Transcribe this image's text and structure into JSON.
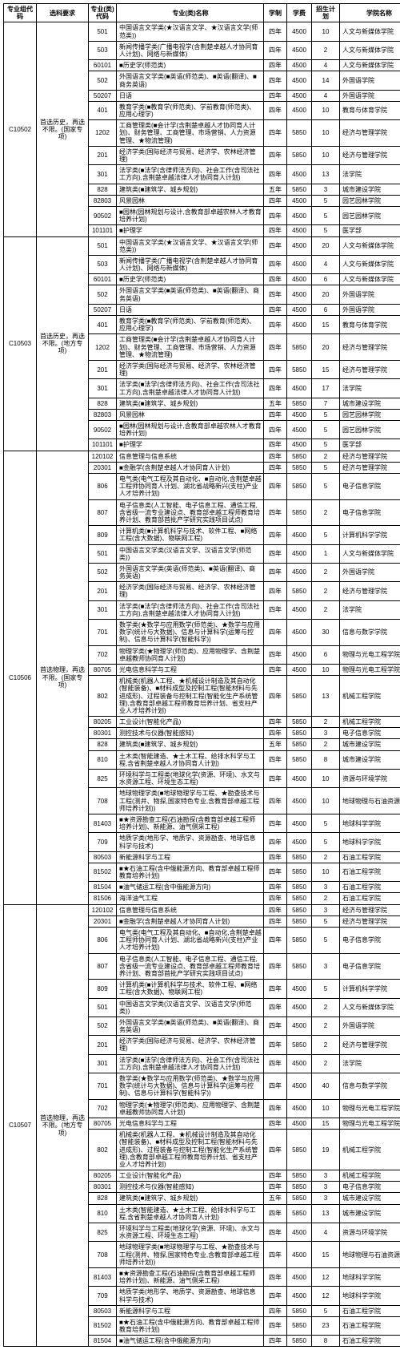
{
  "headers": [
    "专业组代码",
    "选科要求",
    "专业(类)代码",
    "专业(类)名称",
    "学制",
    "学费",
    "招生计划",
    "学院名称"
  ],
  "groups": [
    {
      "code": "C10502",
      "req": "首选历史，再选不限。(国家专项)",
      "rows": [
        {
          "mc": "501",
          "mn": "中国语言文学类(★汉语言文学、★汉语言文学(师范类))",
          "d": "四年",
          "f": "4500",
          "p": "10",
          "s": "人文与新媒体学院"
        },
        {
          "mc": "503",
          "mn": "新闻传播学类(广播电视学(含荆楚卓越人才协同育人计划)、网络与新媒体)",
          "d": "四年",
          "f": "4500",
          "p": "2",
          "s": "人文与新媒体学院"
        },
        {
          "mc": "60101",
          "mn": "■历史学(师范类)",
          "d": "四年",
          "f": "4500",
          "p": "4",
          "s": "人文与新媒体学院"
        },
        {
          "mc": "502",
          "mn": "外国语言文学类(■英语(师范类)、■英语(翻译)、■商务英语)",
          "d": "四年",
          "f": "4500",
          "p": "14",
          "s": "外国语学院"
        },
        {
          "mc": "50207",
          "mn": "日语",
          "d": "四年",
          "f": "4500",
          "p": "4",
          "s": "外国语学院"
        },
        {
          "mc": "401",
          "mn": "教育学类(■教育学(师范类)、学前教育(师范类)、应用心理学)",
          "d": "四年",
          "f": "4500",
          "p": "10",
          "s": "教育与体育学院"
        },
        {
          "mc": "1202",
          "mn": "工商管理类(■会计学(含荆楚卓越人才协同育人计划)、财务管理、工商管理、市场营销、人力资源管理、★物流管理)",
          "d": "四年",
          "f": "5850",
          "p": "10",
          "s": "经济与管理学院"
        },
        {
          "mc": "201",
          "mn": "经济学类(国际经济与贸易、经济学、农林经济管理)",
          "d": "四年",
          "f": "5850",
          "p": "10",
          "s": "经济与管理学院"
        },
        {
          "mc": "301",
          "mn": "法学类(■法学(含律师法方向)、社会工作(含司法社工方向),含荆楚卓越法律人才协同育人计划)",
          "d": "四年",
          "f": "4500",
          "p": "13",
          "s": "法学院"
        },
        {
          "mc": "828",
          "mn": "建筑类(■建筑学、城乡规划)",
          "d": "五年",
          "f": "5850",
          "p": "3",
          "s": "城市建设学院"
        },
        {
          "mc": "82803",
          "mn": "风景园林",
          "d": "四年",
          "f": "4500",
          "p": "5",
          "s": "园艺园林学院"
        },
        {
          "mc": "90502",
          "mn": "■园林(园林规划与设计,含教育部卓越农林人才教育培养计划)",
          "d": "四年",
          "f": "4500",
          "p": "5",
          "s": "园艺园林学院"
        },
        {
          "mc": "101101",
          "mn": "■护理学",
          "d": "四年",
          "f": "4500",
          "p": "5",
          "s": "医学部"
        }
      ]
    },
    {
      "code": "C10503",
      "req": "首选历史，再选不限。(地方专项)",
      "rows": [
        {
          "mc": "501",
          "mn": "中国语言文学类(★汉语言文学、★汉语言文学(师范类))",
          "d": "四年",
          "f": "4500",
          "p": "20",
          "s": "人文与新媒体学院"
        },
        {
          "mc": "503",
          "mn": "新闻传播学类(广播电视学(含荆楚卓越人才协同育人计划)、网络与新媒体)",
          "d": "四年",
          "f": "4500",
          "p": "4",
          "s": "人文与新媒体学院"
        },
        {
          "mc": "60101",
          "mn": "■历史学(师范类)",
          "d": "四年",
          "f": "4500",
          "p": "6",
          "s": "人文与新媒体学院"
        },
        {
          "mc": "502",
          "mn": "外国语言文学类(■英语(师范类)、■英语(翻译)、商务英语)",
          "d": "四年",
          "f": "4500",
          "p": "20",
          "s": "外国语学院"
        },
        {
          "mc": "50207",
          "mn": "日语",
          "d": "四年",
          "f": "4500",
          "p": "6",
          "s": "外国语学院"
        },
        {
          "mc": "401",
          "mn": "教育学类(■教育学(师范类)、学前教育(师范类)、应用心理学)",
          "d": "四年",
          "f": "4500",
          "p": "15",
          "s": "教育与体育学院"
        },
        {
          "mc": "1202",
          "mn": "工商管理类(■会计学(含荆楚卓越人才协同育人计划)、财务管理、工商管理、市场营销、人力资源管理、★物流管理)",
          "d": "四年",
          "f": "5850",
          "p": "20",
          "s": "经济与管理学院"
        },
        {
          "mc": "201",
          "mn": "经济学类(国际经济与贸易、经济学、农林经济管理)",
          "d": "四年",
          "f": "5850",
          "p": "15",
          "s": "经济与管理学院"
        },
        {
          "mc": "301",
          "mn": "法学类(■法学(含律师法方向)、社会工作(含司法社工方向),含荆楚卓越法律人才协同育人计划)",
          "d": "四年",
          "f": "4500",
          "p": "17",
          "s": "法学院"
        },
        {
          "mc": "828",
          "mn": "建筑类(■建筑学、城乡规划)",
          "d": "五年",
          "f": "5850",
          "p": "7",
          "s": "城市建设学院"
        },
        {
          "mc": "82803",
          "mn": "风景园林",
          "d": "四年",
          "f": "4500",
          "p": "5",
          "s": "园艺园林学院"
        },
        {
          "mc": "90502",
          "mn": "■园林(园林规划与设计,含教育部卓越农林人才教育培养计划)",
          "d": "四年",
          "f": "4500",
          "p": "5",
          "s": "园艺园林学院"
        },
        {
          "mc": "101101",
          "mn": "■护理学",
          "d": "四年",
          "f": "4500",
          "p": "5",
          "s": "医学部"
        }
      ]
    },
    {
      "code": "C10506",
      "req": "首选物理，再选不限。(国家专项)",
      "rows": [
        {
          "mc": "120102",
          "mn": "信息管理与信息系统",
          "d": "四年",
          "f": "5850",
          "p": "2",
          "s": "经济与管理学院"
        },
        {
          "mc": "20301",
          "mn": "■金融学(含荆楚卓越人才协同育人计划)",
          "d": "四年",
          "f": "5850",
          "p": "5",
          "s": "经济与管理学院"
        },
        {
          "mc": "806",
          "mn": "电气类(电气工程及其自动化、■自动化,含荆楚卓越工程师协同育人计划、湖北省战略新兴(支柱)产业人才培养计划)",
          "d": "四年",
          "f": "5850",
          "p": "5",
          "s": "电子信息学院"
        },
        {
          "mc": "807",
          "mn": "电子信息类(人工智能、电子信息工程、通信工程,含省级一流专业建设点、教育部卓越工程师教育培养计划、教育部首批产学研究实践项目试点)",
          "d": "四年",
          "f": "5850",
          "p": "2",
          "s": "电子信息学院"
        },
        {
          "mc": "809",
          "mn": "计算机类(■计算机科学与技术、软件工程、■网络工程(含大数据)、物联网工程)",
          "d": "四年",
          "f": "4500",
          "p": "5",
          "s": "计算机科学学院"
        },
        {
          "mc": "501",
          "mn": "中国语言文学类(汉语言文学、汉语言文学(师范类))",
          "d": "四年",
          "f": "4500",
          "p": "1",
          "s": "人文与新媒体学院"
        },
        {
          "mc": "502",
          "mn": "外国语言文学类(英语(师范类)、■英语(翻译)、商务英语)",
          "d": "四年",
          "f": "4500",
          "p": "2",
          "s": "外国语学院"
        },
        {
          "mc": "201",
          "mn": "经济学类(国际经济与贸易、经济学、农林经济管理)",
          "d": "四年",
          "f": "5850",
          "p": "2",
          "s": "经济与管理学院"
        },
        {
          "mc": "301",
          "mn": "法学类(■法学(含律师法方向)、社会工作(含司法社工方向),含荆楚卓越法律人才协同育人计划)",
          "d": "四年",
          "f": "4500",
          "p": "2",
          "s": "法学院"
        },
        {
          "mc": "701",
          "mn": "数学类(★数学与应用数学(师范类)、★数学与应用数学(统计与大数据)、信息与计算科学(运筹与控制)、信息与计算科学(智能科学))",
          "d": "四年",
          "f": "4500",
          "p": "30",
          "s": "信息与数学学院"
        },
        {
          "mc": "702",
          "mn": "物理学类(★物理学(师范类)、应用物理学、含荆楚卓越教师协同育人计划)",
          "d": "四年",
          "f": "4500",
          "p": "6",
          "s": "物理与光电工程学院"
        },
        {
          "mc": "80705",
          "mn": "光电信息科学与工程",
          "d": "四年",
          "f": "4500",
          "p": "10",
          "s": "物理与光电工程学院"
        },
        {
          "mc": "802",
          "mn": "机械类(机器人工程、★机械设计制造及其自动化(智能装备)、■材料成型及控制工程(智能材料与先进成形)、过程装备与控制工程(智能化生产系统管理),含教育部卓越工程师教育培养计划、省支柱产业人才培养计划)",
          "d": "四年",
          "f": "5850",
          "p": "13",
          "s": "机械工程学院"
        },
        {
          "mc": "80205",
          "mn": "工业设计(智能化产品)",
          "d": "四年",
          "f": "5850",
          "p": "2",
          "s": "机械工程学院"
        },
        {
          "mc": "80301",
          "mn": "测控技术与仪器(智能感知)",
          "d": "四年",
          "f": "5850",
          "p": "3",
          "s": "电子信息学院"
        },
        {
          "mc": "828",
          "mn": "建筑类(■建筑学、城乡规划)",
          "d": "五年",
          "f": "5850",
          "p": "2",
          "s": "城市建设学院"
        },
        {
          "mc": "810",
          "mn": "土木类(智能建造、★土木工程、给排水科学与工程,含省荆楚卓越人才协同育人计划)",
          "d": "四年",
          "f": "5850",
          "p": "8",
          "s": "城市建设学院"
        },
        {
          "mc": "825",
          "mn": "环境科学与工程类(地球化学(资源、环境)、水文与水资源工程、环境生态工程)",
          "d": "四年",
          "f": "4500",
          "p": "10",
          "s": "资源与环境学院"
        },
        {
          "mc": "708",
          "mn": "地球物理学类(■地球物理学与工程、★勘查技术与工程(测井、物探,国家特色专业,含教育部卓越工程师培养计划))",
          "d": "四年",
          "f": "4500",
          "p": "10",
          "s": "地球物理与石油资源学院"
        },
        {
          "mc": "81403",
          "mn": "■★资源勘查工程(石油勘探(含教育部卓越工程师培养计划)、新能源、油气侧采工程)",
          "d": "四年",
          "f": "4500",
          "p": "5",
          "s": "地球科学学院"
        },
        {
          "mc": "709",
          "mn": "地质学类(地形学、地质学、资源勘查、地球信息科学与技术)",
          "d": "四年",
          "f": "4500",
          "p": "5",
          "s": "地球科学学院"
        },
        {
          "mc": "80503",
          "mn": "新能源科学与工程",
          "d": "四年",
          "f": "5850",
          "p": "2",
          "s": "石油工程学院"
        },
        {
          "mc": "81502",
          "mn": "■★石油工程(含中俄能源方向、教育部卓越工程师教育培养计划)",
          "d": "四年",
          "f": "5850",
          "p": "10",
          "s": "石油工程学院"
        },
        {
          "mc": "81504",
          "mn": "■油气储运工程(含中俄能源方向)",
          "d": "四年",
          "f": "5850",
          "p": "3",
          "s": "石油工程学院"
        },
        {
          "mc": "81506",
          "mn": "海洋油气工程",
          "d": "四年",
          "f": "5850",
          "p": "2",
          "s": "石油工程学院"
        }
      ]
    },
    {
      "code": "C10507",
      "req": "首选物理，再选不限。(地方专项)",
      "rows": [
        {
          "mc": "120102",
          "mn": "信息管理与信息系统",
          "d": "四年",
          "f": "5850",
          "p": "3",
          "s": "经济与管理学院"
        },
        {
          "mc": "20301",
          "mn": "■金融学(含荆楚卓越人才协同育人计划)",
          "d": "四年",
          "f": "5850",
          "p": "5",
          "s": "经济与管理学院"
        },
        {
          "mc": "806",
          "mn": "电气类(电气工程及其自动化、■自动化,含荆楚卓越工程师协同育人计划、湖北省战略新兴(支柱)产业人才培养计划)",
          "d": "四年",
          "f": "5850",
          "p": "5",
          "s": "电子信息学院"
        },
        {
          "mc": "807",
          "mn": "电子信息类(人工智能、电子信息工程、通信工程,含省级一流专业建设点、教育部卓越工程师教育培养计划、教育部首批产学研究实践项目试点)",
          "d": "四年",
          "f": "5850",
          "p": "3",
          "s": "电子信息学院"
        },
        {
          "mc": "809",
          "mn": "计算机类(■计算机科学与技术、软件工程、■网络工程(含大数据)、物联网工程)",
          "d": "四年",
          "f": "4500",
          "p": "5",
          "s": "计算机科学学院"
        },
        {
          "mc": "501",
          "mn": "中国语言文学类(汉语言文学、汉语言文学(师范类))",
          "d": "四年",
          "f": "4500",
          "p": "2",
          "s": "人文与新媒体学院"
        },
        {
          "mc": "502",
          "mn": "外国语言文学类(■英语(师范类)、■英语(翻译)、商务英语)",
          "d": "四年",
          "f": "4500",
          "p": "2",
          "s": "外国语学院"
        },
        {
          "mc": "201",
          "mn": "经济学类(国际经济与贸易、经济学、农林经济管理)",
          "d": "四年",
          "f": "5850",
          "p": "2",
          "s": "经济与管理学院"
        },
        {
          "mc": "301",
          "mn": "法学类(■法学(含律师法方向)、社会工作(含司法社工方向),含荆楚卓越法律人才协同育人计划)",
          "d": "四年",
          "f": "4500",
          "p": "2",
          "s": "法学院"
        },
        {
          "mc": "701",
          "mn": "数学类(★数学与应用数学(师范类)、★数学与应用数学(统计与大数据)、信息与计算科学(运筹与控制)、信息与计算科学(智能科学))",
          "d": "四年",
          "f": "4500",
          "p": "40",
          "s": "信息与数学学院"
        },
        {
          "mc": "702",
          "mn": "物理学类(★物理学(师范类)、应用物理学、含荆楚卓越教师协同育人计划)",
          "d": "四年",
          "f": "4500",
          "p": "10",
          "s": "物理与光电工程学院"
        },
        {
          "mc": "80705",
          "mn": "光电信息科学与工程",
          "d": "四年",
          "f": "4500",
          "p": "15",
          "s": "物理与光电工程学院"
        },
        {
          "mc": "802",
          "mn": "机械类(机器人工程、★机械设计制造及其自动化(智能装备)、■材料成型及控制工程(智能材料与先进成形)、过程装备与控制工程(智能化生产系统管理),含教育部卓越工程师教育培养计划、省支柱产业人才培养计划)",
          "d": "四年",
          "f": "5850",
          "p": "19",
          "s": "机械工程学院"
        },
        {
          "mc": "80205",
          "mn": "工业设计(智能化产品)",
          "d": "四年",
          "f": "5850",
          "p": "3",
          "s": "机械工程学院"
        },
        {
          "mc": "80301",
          "mn": "测控技术与仪器(智能感知)",
          "d": "四年",
          "f": "5850",
          "p": "3",
          "s": "电子信息学院"
        },
        {
          "mc": "828",
          "mn": "建筑类(■建筑学、城乡规划)",
          "d": "五年",
          "f": "5850",
          "p": "3",
          "s": "城市建设学院"
        },
        {
          "mc": "810",
          "mn": "土木类(智能建造、★土木工程、给排水科学与工程,含省荆楚卓越人才协同育人计划)",
          "d": "四年",
          "f": "5850",
          "p": "13",
          "s": "城市建设学院"
        },
        {
          "mc": "825",
          "mn": "环境科学与工程类(地球化学(资源、环境)、水文与水资源工程、环境生态工程)",
          "d": "四年",
          "f": "4500",
          "p": "4",
          "s": "资源与环境学院"
        },
        {
          "mc": "708",
          "mn": "地球物理学类(■地球物理学与工程、★勘查技术与工程(测井、物探,国家特色专业,含教育部卓越工程师培养计划))",
          "d": "四年",
          "f": "4500",
          "p": "15",
          "s": "地球物理与石油资源学院"
        },
        {
          "mc": "81403",
          "mn": "■★资源勘查工程(石油勘探(含教育部卓越工程师培养计划)、新能源、油气侧采工程)",
          "d": "四年",
          "f": "4500",
          "p": "12",
          "s": "地球科学学院"
        },
        {
          "mc": "709",
          "mn": "地质学类(地形学、地质学、资源勘查、地球信息科学与技术)",
          "d": "四年",
          "f": "4500",
          "p": "12",
          "s": "地球科学学院"
        },
        {
          "mc": "80503",
          "mn": "新能源科学与工程",
          "d": "四年",
          "f": "5850",
          "p": "5",
          "s": "石油工程学院"
        },
        {
          "mc": "81502",
          "mn": "■★石油工程(含中俄能源方向、教育部卓越工程师教育培养计划)",
          "d": "四年",
          "f": "5850",
          "p": "23",
          "s": "石油工程学院"
        },
        {
          "mc": "81504",
          "mn": "■油气储运工程(含中俄能源方向)",
          "d": "四年",
          "f": "5850",
          "p": "8",
          "s": "石油工程学院"
        }
      ]
    }
  ]
}
